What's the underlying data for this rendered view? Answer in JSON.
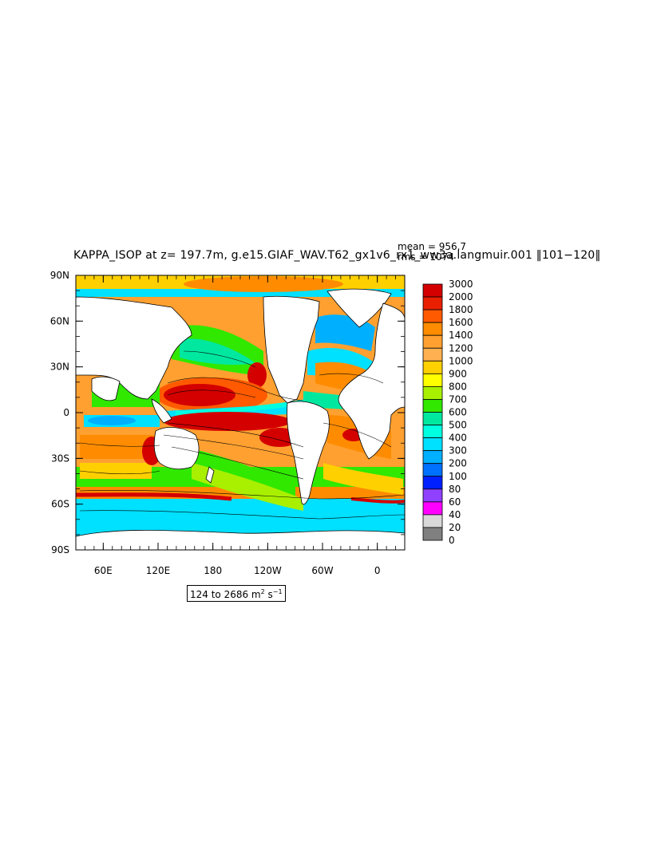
{
  "header": {
    "title": "KAPPA_ISOP at z= 197.7m, g.e15.GIAF_WAV.T62_gx1v6_rx1_ww3a.langmuir.001 ‖101−120‖",
    "mean_label": "mean = 956.7",
    "rms_label": "rms = 1074"
  },
  "map": {
    "lat_labels": [
      "90N",
      "60N",
      "30N",
      "0",
      "30S",
      "60S",
      "90S"
    ],
    "lon_labels": [
      "60E",
      "120E",
      "180",
      "120W",
      "60W",
      "0"
    ],
    "land_color": "#ffffff"
  },
  "colorbar": {
    "levels": [
      "3000",
      "2000",
      "1800",
      "1600",
      "1400",
      "1200",
      "1000",
      "900",
      "800",
      "700",
      "600",
      "500",
      "400",
      "300",
      "200",
      "100",
      "80",
      "60",
      "40",
      "20",
      "0"
    ],
    "colors": [
      "#d40000",
      "#e82000",
      "#ff5a00",
      "#ff8c00",
      "#ffa030",
      "#ffb050",
      "#ffd000",
      "#ffff00",
      "#a8f000",
      "#30e800",
      "#00e8a0",
      "#00ffe0",
      "#00e0ff",
      "#00b0ff",
      "#0070ff",
      "#0020ff",
      "#9040ff",
      "#ff00ff",
      "#d8d8d8",
      "#808080"
    ]
  },
  "units": {
    "prefix": "124 to 2686 m",
    "exp1": "2",
    "mid": " s",
    "exp2": "−1"
  }
}
